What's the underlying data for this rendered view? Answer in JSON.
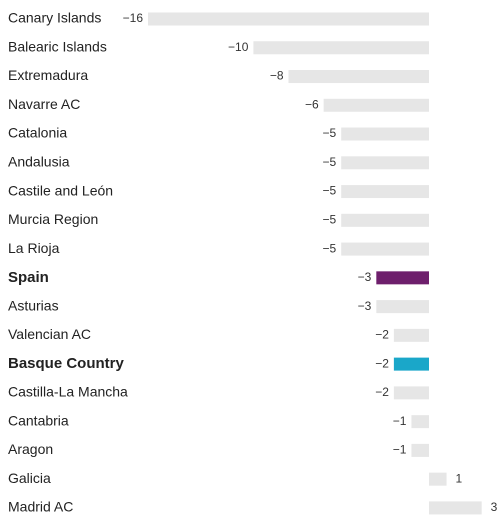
{
  "chart_data": {
    "type": "hbar",
    "categories": [
      "Canary Islands",
      "Balearic Islands",
      "Extremadura",
      "Navarre AC",
      "Catalonia",
      "Andalusia",
      "Castile and León",
      "Murcia Region",
      "La Rioja",
      "Spain",
      "Asturias",
      "Valencian AC",
      "Basque Country",
      "Castilla-La Mancha",
      "Cantabria",
      "Aragon",
      "Galicia",
      "Madrid AC"
    ],
    "values": [
      -16,
      -10,
      -8,
      -6,
      -5,
      -5,
      -5,
      -5,
      -5,
      -3,
      -3,
      -2,
      -2,
      -2,
      -1,
      -1,
      1,
      3
    ],
    "value_labels": [
      "−16",
      "−10",
      "−8",
      "−6",
      "−5",
      "−5",
      "−5",
      "−5",
      "−5",
      "−3",
      "−3",
      "−2",
      "−2",
      "−2",
      "−1",
      "−1",
      "1",
      "3"
    ],
    "colors": [
      "#e6e6e6",
      "#e6e6e6",
      "#e6e6e6",
      "#e6e6e6",
      "#e6e6e6",
      "#e6e6e6",
      "#e6e6e6",
      "#e6e6e6",
      "#e6e6e6",
      "#6e1f6c",
      "#e6e6e6",
      "#e6e6e6",
      "#1aa7c9",
      "#e6e6e6",
      "#e6e6e6",
      "#e6e6e6",
      "#e6e6e6",
      "#e6e6e6"
    ],
    "bold": [
      false,
      false,
      false,
      false,
      false,
      false,
      false,
      false,
      false,
      true,
      false,
      false,
      true,
      false,
      false,
      false,
      false,
      false
    ]
  }
}
